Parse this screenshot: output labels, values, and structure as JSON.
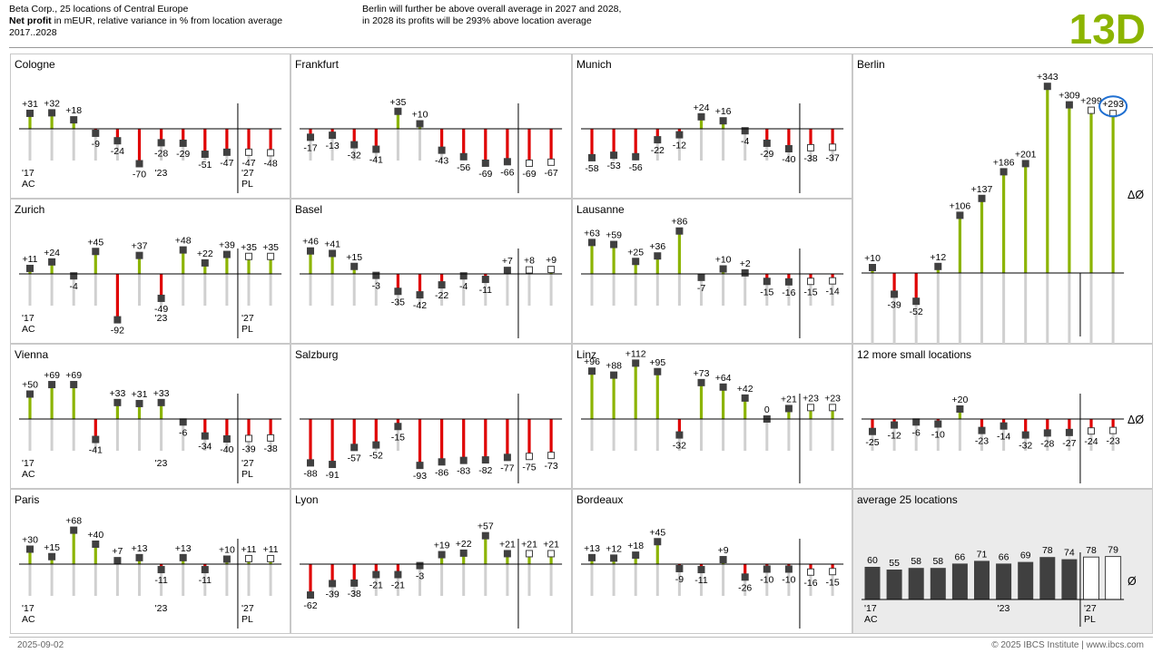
{
  "header": {
    "line1": "Beta Corp., 25 locations of Central Europe",
    "measure_bold": "Net profit",
    "measure_rest": " in mEUR, relative variance in % from location average",
    "period": "2017..2028",
    "message_line1": "Berlin will further be above overall average in 2027 and 2028,",
    "message_line2": "in 2028 its profits will be 293% above location average",
    "big_id": "13D"
  },
  "footer": {
    "date": "2025-09-02",
    "copyright": "© 2025 IBCS Institute | www.ibcs.com"
  },
  "colors": {
    "positive": "#8cb400",
    "negative": "#e00000",
    "marker": "#404040",
    "highlight_circle": "#1f6fd1",
    "avg_bar": "#404040",
    "panel_shade": "#ebebeb",
    "id_green": "#8cb400"
  },
  "chart_data": [
    {
      "type": "bar",
      "name": "Cologne",
      "label_2017": "'17",
      "label_AC": "AC",
      "label_2023": "'23",
      "label_2027": "'27",
      "label_PL": "PL",
      "categories": [
        "2017",
        "2018",
        "2019",
        "2020",
        "2021",
        "2022",
        "2023",
        "2024",
        "2025",
        "2026",
        "2027",
        "2028"
      ],
      "values": [
        31,
        32,
        18,
        -9,
        -24,
        -70,
        -28,
        -29,
        -51,
        -47,
        -47,
        -48
      ],
      "labels": [
        "+31",
        "+32",
        "+18",
        "-9",
        "-24",
        "-70",
        "-28",
        "-29",
        "-51",
        "-47",
        "-47",
        "-48"
      ]
    },
    {
      "type": "bar",
      "name": "Frankfurt",
      "categories": [
        "2017",
        "2018",
        "2019",
        "2020",
        "2021",
        "2022",
        "2023",
        "2024",
        "2025",
        "2026",
        "2027",
        "2028"
      ],
      "values": [
        -17,
        -13,
        -32,
        -41,
        35,
        10,
        -43,
        -56,
        -69,
        -66,
        -69,
        -67
      ],
      "labels": [
        "-17",
        "-13",
        "-32",
        "-41",
        "+35",
        "+10",
        "-43",
        "-56",
        "-69",
        "-66",
        "-69",
        "-67"
      ]
    },
    {
      "type": "bar",
      "name": "Munich",
      "categories": [
        "2017",
        "2018",
        "2019",
        "2020",
        "2021",
        "2022",
        "2023",
        "2024",
        "2025",
        "2026",
        "2027",
        "2028"
      ],
      "values": [
        -58,
        -53,
        -56,
        -22,
        -12,
        24,
        16,
        -4,
        -29,
        -40,
        -38,
        -37
      ],
      "labels": [
        "-58",
        "-53",
        "-56",
        "-22",
        "-12",
        "+24",
        "+16",
        "-4",
        "-29",
        "-40",
        "-38",
        "-37"
      ]
    },
    {
      "type": "bar",
      "name": "Berlin",
      "avg_symbol": "ΔØ",
      "categories": [
        "2017",
        "2018",
        "2019",
        "2020",
        "2021",
        "2022",
        "2023",
        "2024",
        "2025",
        "2026",
        "2027",
        "2028"
      ],
      "values": [
        10,
        -39,
        -52,
        12,
        106,
        137,
        186,
        201,
        343,
        309,
        299,
        293
      ],
      "labels": [
        "+10",
        "-39",
        "-52",
        "+12",
        "+106",
        "+137",
        "+186",
        "+201",
        "+343",
        "+309",
        "+299",
        "+293"
      ],
      "highlight_index": 11
    },
    {
      "type": "bar",
      "name": "Zurich",
      "label_2017": "'17",
      "label_AC": "AC",
      "label_2023": "'23",
      "label_2027": "'27",
      "label_PL": "PL",
      "categories": [
        "2017",
        "2018",
        "2019",
        "2020",
        "2021",
        "2022",
        "2023",
        "2024",
        "2025",
        "2026",
        "2027",
        "2028"
      ],
      "values": [
        11,
        24,
        -4,
        45,
        -92,
        37,
        -49,
        48,
        22,
        39,
        35,
        35
      ],
      "labels": [
        "+11",
        "+24",
        "-4",
        "+45",
        "-92",
        "+37",
        "-49",
        "+48",
        "+22",
        "+39",
        "+35",
        "+35"
      ]
    },
    {
      "type": "bar",
      "name": "Basel",
      "categories": [
        "2017",
        "2018",
        "2019",
        "2020",
        "2021",
        "2022",
        "2023",
        "2024",
        "2025",
        "2026",
        "2027",
        "2028"
      ],
      "values": [
        46,
        41,
        15,
        -3,
        -35,
        -42,
        -22,
        -4,
        -11,
        7,
        8,
        9
      ],
      "labels": [
        "+46",
        "+41",
        "+15",
        "-3",
        "-35",
        "-42",
        "-22",
        "-4",
        "-11",
        "+7",
        "+8",
        "+9"
      ]
    },
    {
      "type": "bar",
      "name": "Lausanne",
      "categories": [
        "2017",
        "2018",
        "2019",
        "2020",
        "2021",
        "2022",
        "2023",
        "2024",
        "2025",
        "2026",
        "2027",
        "2028"
      ],
      "values": [
        63,
        59,
        25,
        36,
        86,
        -7,
        10,
        2,
        -15,
        -16,
        -15,
        -14
      ],
      "labels": [
        "+63",
        "+59",
        "+25",
        "+36",
        "+86",
        "-7",
        "+10",
        "+2",
        "-15",
        "-16",
        "-15",
        "-14"
      ]
    },
    {
      "type": "bar",
      "name": "Vienna",
      "label_2017": "'17",
      "label_AC": "AC",
      "label_2023": "'23",
      "label_2027": "'27",
      "label_PL": "PL",
      "categories": [
        "2017",
        "2018",
        "2019",
        "2020",
        "2021",
        "2022",
        "2023",
        "2024",
        "2025",
        "2026",
        "2027",
        "2028"
      ],
      "values": [
        50,
        69,
        69,
        -41,
        33,
        31,
        33,
        -6,
        -34,
        -40,
        -39,
        -38
      ],
      "labels": [
        "+50",
        "+69",
        "+69",
        "-41",
        "+33",
        "+31",
        "+33",
        "-6",
        "-34",
        "-40",
        "-39",
        "-38"
      ]
    },
    {
      "type": "bar",
      "name": "Salzburg",
      "categories": [
        "2017",
        "2018",
        "2019",
        "2020",
        "2021",
        "2022",
        "2023",
        "2024",
        "2025",
        "2026",
        "2027",
        "2028"
      ],
      "values": [
        -88,
        -91,
        -57,
        -52,
        -15,
        -93,
        -86,
        -83,
        -82,
        -77,
        -75,
        -73
      ],
      "labels": [
        "-88",
        "-91",
        "-57",
        "-52",
        "-15",
        "-93",
        "-86",
        "-83",
        "-82",
        "-77",
        "-75",
        "-73"
      ]
    },
    {
      "type": "bar",
      "name": "Linz",
      "categories": [
        "2017",
        "2018",
        "2019",
        "2020",
        "2021",
        "2022",
        "2023",
        "2024",
        "2025",
        "2026",
        "2027",
        "2028"
      ],
      "values": [
        96,
        88,
        112,
        95,
        -32,
        73,
        64,
        42,
        0,
        21,
        23,
        23
      ],
      "labels": [
        "+96",
        "+88",
        "+112",
        "+95",
        "-32",
        "+73",
        "+64",
        "+42",
        "0",
        "+21",
        "+23",
        "+23"
      ]
    },
    {
      "type": "bar",
      "name": "12 more small locations",
      "avg_symbol": "ΔØ",
      "categories": [
        "2017",
        "2018",
        "2019",
        "2020",
        "2021",
        "2022",
        "2023",
        "2024",
        "2025",
        "2026",
        "2027",
        "2028"
      ],
      "values": [
        -25,
        -12,
        -6,
        -10,
        20,
        -23,
        -14,
        -32,
        -28,
        -27,
        -24,
        -23
      ],
      "labels": [
        "-25",
        "-12",
        "-6",
        "-10",
        "+20",
        "-23",
        "-14",
        "-32",
        "-28",
        "-27",
        "-24",
        "-23"
      ]
    },
    {
      "type": "bar",
      "name": "Paris",
      "label_2017": "'17",
      "label_AC": "AC",
      "label_2023": "'23",
      "label_2027": "'27",
      "label_PL": "PL",
      "categories": [
        "2017",
        "2018",
        "2019",
        "2020",
        "2021",
        "2022",
        "2023",
        "2024",
        "2025",
        "2026",
        "2027",
        "2028"
      ],
      "values": [
        30,
        15,
        68,
        40,
        7,
        13,
        -11,
        13,
        -11,
        10,
        11,
        11
      ],
      "labels": [
        "+30",
        "+15",
        "+68",
        "+40",
        "+7",
        "+13",
        "-11",
        "+13",
        "-11",
        "+10",
        "+11",
        "+11"
      ]
    },
    {
      "type": "bar",
      "name": "Lyon",
      "categories": [
        "2017",
        "2018",
        "2019",
        "2020",
        "2021",
        "2022",
        "2023",
        "2024",
        "2025",
        "2026",
        "2027",
        "2028"
      ],
      "values": [
        -62,
        -39,
        -38,
        -21,
        -21,
        -3,
        19,
        22,
        57,
        21,
        21,
        21
      ],
      "labels": [
        "-62",
        "-39",
        "-38",
        "-21",
        "-21",
        "-3",
        "+19",
        "+22",
        "+57",
        "+21",
        "+21",
        "+21"
      ]
    },
    {
      "type": "bar",
      "name": "Bordeaux",
      "categories": [
        "2017",
        "2018",
        "2019",
        "2020",
        "2021",
        "2022",
        "2023",
        "2024",
        "2025",
        "2026",
        "2027",
        "2028"
      ],
      "values": [
        13,
        12,
        18,
        45,
        -9,
        -11,
        9,
        -26,
        -10,
        -10,
        -16,
        -15
      ],
      "labels": [
        "+13",
        "+12",
        "+18",
        "+45",
        "-9",
        "-11",
        "+9",
        "-26",
        "-10",
        "-10",
        "-16",
        "-15"
      ]
    },
    {
      "type": "bar",
      "name": "average 25 locations",
      "avg_symbol": "Ø",
      "label_2017": "'17",
      "label_AC": "AC",
      "label_2023": "'23",
      "label_2027": "'27",
      "label_PL": "PL",
      "categories": [
        "2017",
        "2018",
        "2019",
        "2020",
        "2021",
        "2022",
        "2023",
        "2024",
        "2025",
        "2026",
        "2027",
        "2028"
      ],
      "values": [
        60,
        55,
        58,
        58,
        66,
        71,
        66,
        69,
        78,
        74,
        78,
        79
      ],
      "labels": [
        "60",
        "55",
        "58",
        "58",
        "66",
        "71",
        "66",
        "69",
        "78",
        "74",
        "78",
        "79"
      ]
    }
  ]
}
